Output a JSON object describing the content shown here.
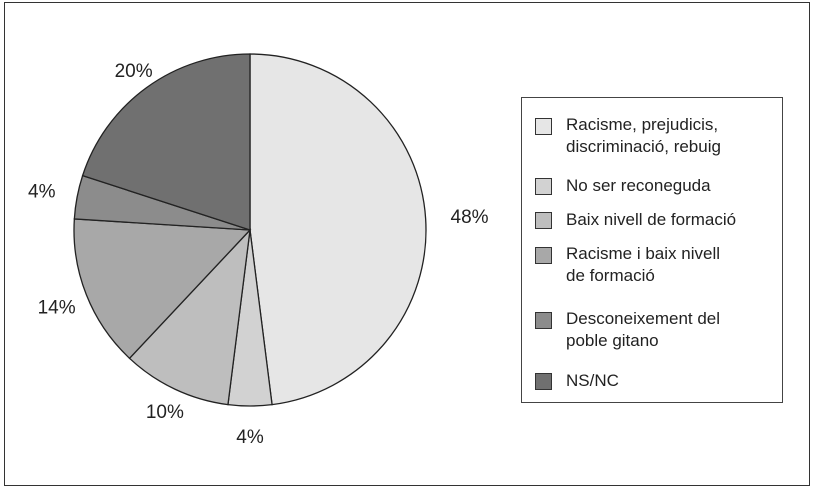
{
  "chart_data": {
    "type": "pie",
    "title": "",
    "labels": [
      "Racisme, prejudicis, discriminació, rebuig",
      "No ser reconeguda",
      "Baix nivell de formació",
      "Racisme i baix nivell de formació",
      "Desconeixement del poble gitano",
      "NS/NC"
    ],
    "values": [
      48,
      4,
      10,
      14,
      4,
      20
    ],
    "value_labels": [
      "48%",
      "4%",
      "10%",
      "14%",
      "4%",
      "20%"
    ],
    "colors": [
      "#e6e6e6",
      "#d2d2d2",
      "#bebebe",
      "#a8a8a8",
      "#8c8c8c",
      "#707070"
    ],
    "legend_position": "right",
    "start": "12 o'clock",
    "direction": "clockwise"
  }
}
